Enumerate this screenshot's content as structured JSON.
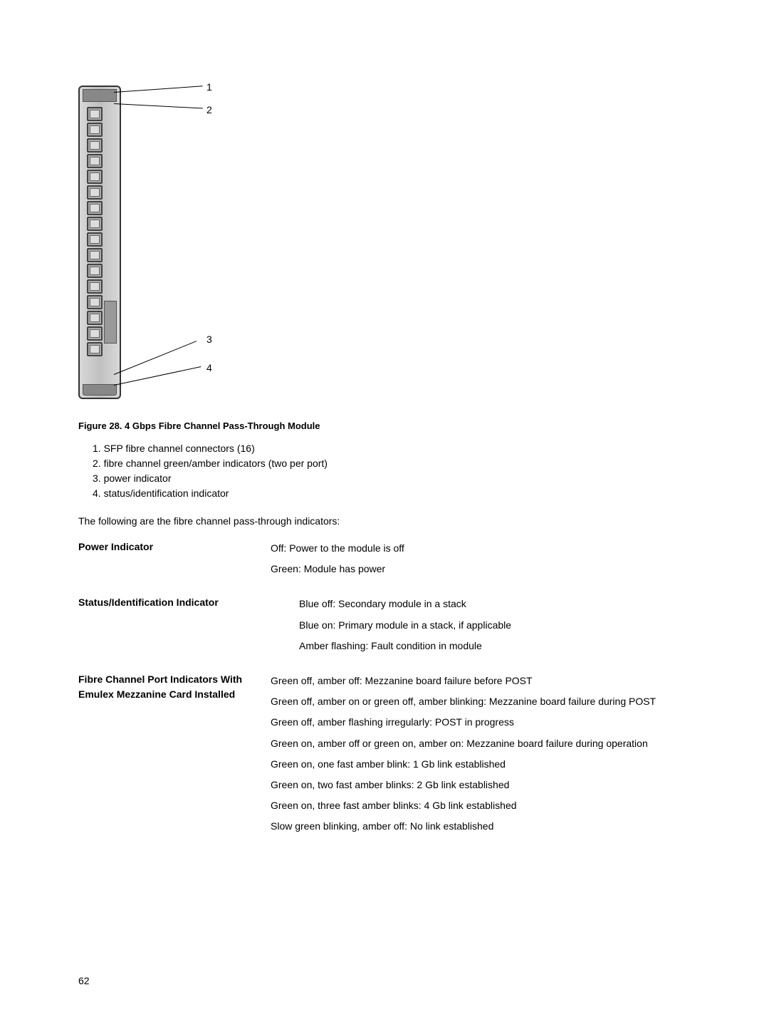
{
  "figure": {
    "callout_1": "1",
    "callout_2": "2",
    "callout_3": "3",
    "callout_4": "4",
    "caption": "Figure 28. 4 Gbps Fibre Channel Pass-Through Module",
    "legend_1": "1. SFP fibre channel connectors (16)",
    "legend_2": "2. fibre channel green/amber indicators (two per port)",
    "legend_3": "3. power indicator",
    "legend_4": "4. status/identification indicator"
  },
  "intro": "The following are the fibre channel pass-through indicators:",
  "indicators": {
    "power": {
      "label": "Power Indicator",
      "v1": "Off: Power to the module is off",
      "v2": "Green: Module has power"
    },
    "status": {
      "label": "Status/Identification Indicator",
      "v1": "Blue off: Secondary module in a stack",
      "v2": "Blue on: Primary module in a stack, if applicable",
      "v3": "Amber flashing: Fault condition in module"
    },
    "fibre": {
      "label": "Fibre Channel Port Indicators With Emulex Mezzanine Card Installed",
      "v1": "Green off, amber off: Mezzanine board failure before POST",
      "v2": "Green off, amber on or green off, amber blinking: Mezzanine board failure during POST",
      "v3": "Green off, amber flashing irregularly: POST in progress",
      "v4": "Green on, amber off or green on, amber on: Mezzanine board failure during operation",
      "v5": "Green on, one fast amber blink: 1 Gb link established",
      "v6": "Green on, two fast amber blinks: 2 Gb link established",
      "v7": "Green on, three fast amber blinks: 4 Gb link established",
      "v8": "Slow green blinking, amber off: No link established"
    }
  },
  "page_number": "62"
}
